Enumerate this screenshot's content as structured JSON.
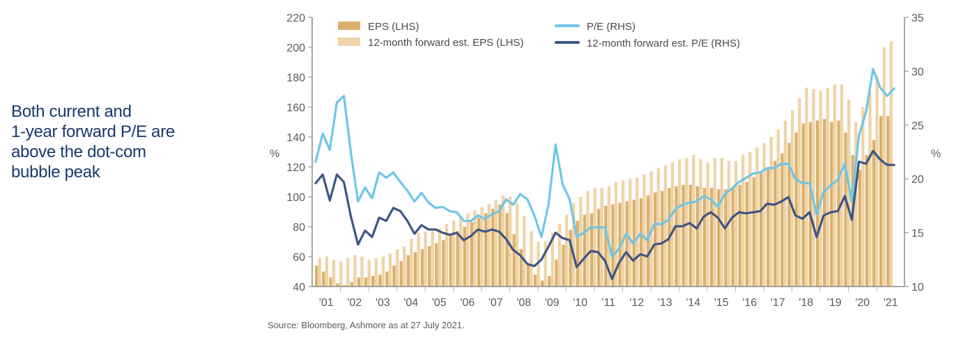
{
  "headline": {
    "lines": [
      "Both current and",
      "1-year forward P/E are",
      "above the dot-com",
      "bubble peak"
    ]
  },
  "colors": {
    "eps": "#dcb06a",
    "fwd_eps": "#efd3a8",
    "pe": "#6ec6e6",
    "fwd_pe": "#3e5585",
    "headline": "#173a6b",
    "axis": "#8a8a8a",
    "text": "#5a5a5a"
  },
  "source": "Source: Bloomberg, Ashmore as at 27 July 2021.",
  "chart_data": {
    "type": "bar",
    "title": "",
    "xlabel": "",
    "ylabel": "%",
    "y2label": "%",
    "ylim": [
      40,
      220
    ],
    "y2lim": [
      10,
      35
    ],
    "yticks": [
      40,
      60,
      80,
      100,
      120,
      140,
      160,
      180,
      200,
      220
    ],
    "y2ticks": [
      10,
      15,
      20,
      25,
      30,
      35
    ],
    "grid": false,
    "legend": "top",
    "year_labels": [
      "'01",
      "'02",
      "'03",
      "'04",
      "'05",
      "'06",
      "'07",
      "'08",
      "'09",
      "'10",
      "'11",
      "'12",
      "'13",
      "'14",
      "'15",
      "'16",
      "'17",
      "'18",
      "'19",
      "'20",
      "'21"
    ],
    "frequency": "quarterly",
    "start": "2001 Q1",
    "series": [
      {
        "name": "EPS (LHS)",
        "type": "bar",
        "axis": "left",
        "values": [
          54,
          50,
          46,
          42,
          41,
          43,
          46,
          46,
          47,
          48,
          50,
          54,
          57,
          61,
          63,
          65,
          67,
          69,
          71,
          74,
          77,
          80,
          83,
          86,
          89,
          92,
          95,
          89,
          75,
          65,
          55,
          48,
          44,
          47,
          58,
          68,
          78,
          84,
          88,
          89,
          92,
          94,
          95,
          96,
          97,
          98,
          99,
          101,
          103,
          104,
          106,
          107,
          108,
          108,
          107,
          106,
          106,
          105,
          105,
          106,
          108,
          110,
          113,
          116,
          120,
          124,
          129,
          136,
          143,
          149,
          150,
          151,
          152,
          150,
          151,
          143,
          128,
          118,
          128,
          138,
          154,
          154
        ]
      },
      {
        "name": "12-month forward est. EPS (LHS)",
        "type": "bar",
        "axis": "left",
        "values": [
          59,
          60,
          58,
          57,
          59,
          61,
          60,
          58,
          59,
          60,
          62,
          65,
          67,
          72,
          76,
          77,
          77,
          79,
          82,
          84,
          87,
          89,
          91,
          93,
          95,
          98,
          101,
          100,
          96,
          87,
          77,
          70,
          70,
          76,
          82,
          88,
          96,
          100,
          104,
          106,
          106,
          107,
          110,
          111,
          112,
          113,
          115,
          117,
          119,
          121,
          123,
          125,
          126,
          128,
          125,
          123,
          126,
          126,
          124,
          124,
          128,
          130,
          133,
          136,
          140,
          145,
          151,
          158,
          166,
          173,
          172,
          171,
          173,
          175,
          175,
          165,
          150,
          160,
          170,
          181,
          200,
          204
        ]
      },
      {
        "name": "P/E (RHS)",
        "type": "line",
        "axis": "right",
        "values": [
          21.6,
          24.2,
          22.7,
          27.1,
          27.7,
          22.4,
          17.9,
          19.2,
          18.2,
          20.6,
          20.1,
          20.6,
          19.7,
          18.9,
          17.9,
          18.7,
          17.8,
          17.3,
          17.4,
          17.0,
          16.9,
          16.1,
          16.1,
          16.6,
          16.3,
          16.7,
          17.0,
          18.1,
          17.6,
          18.6,
          18.1,
          16.6,
          14.6,
          17.6,
          23.2,
          19.5,
          18.1,
          14.6,
          15.0,
          15.5,
          15.5,
          15.5,
          12.8,
          13.5,
          14.9,
          14.0,
          14.9,
          14.3,
          15.8,
          15.8,
          16.2,
          17.2,
          17.6,
          17.8,
          17.9,
          18.4,
          18.1,
          17.4,
          18.6,
          19.1,
          19.7,
          20.1,
          20.5,
          20.6,
          21.0,
          21.0,
          21.4,
          21.4,
          20.0,
          19.6,
          19.6,
          16.7,
          18.8,
          19.4,
          19.9,
          21.4,
          17.9,
          24.0,
          26.2,
          30.2,
          28.5,
          27.7,
          28.4
        ]
      },
      {
        "name": "12-month forward est. P/E (RHS)",
        "type": "line",
        "axis": "right",
        "values": [
          19.6,
          20.4,
          18.0,
          20.4,
          19.7,
          16.5,
          13.9,
          15.2,
          14.6,
          16.4,
          16.1,
          17.3,
          17.0,
          16.1,
          14.9,
          15.7,
          15.3,
          15.3,
          15.0,
          14.8,
          15.0,
          14.3,
          14.7,
          15.3,
          15.1,
          15.3,
          15.1,
          14.4,
          13.4,
          12.9,
          12.1,
          11.9,
          12.5,
          13.7,
          15.0,
          14.5,
          14.3,
          11.8,
          12.6,
          13.3,
          13.2,
          12.4,
          10.7,
          12.2,
          13.2,
          12.4,
          13.0,
          12.8,
          13.9,
          14.0,
          14.4,
          15.6,
          15.6,
          15.9,
          15.4,
          16.5,
          16.9,
          16.4,
          15.4,
          16.4,
          16.9,
          16.8,
          16.9,
          17.0,
          17.7,
          17.6,
          17.9,
          18.3,
          16.6,
          16.3,
          16.9,
          14.6,
          16.6,
          16.9,
          17.0,
          18.4,
          16.2,
          21.6,
          21.4,
          22.6,
          21.8,
          21.3,
          21.3
        ]
      }
    ]
  }
}
